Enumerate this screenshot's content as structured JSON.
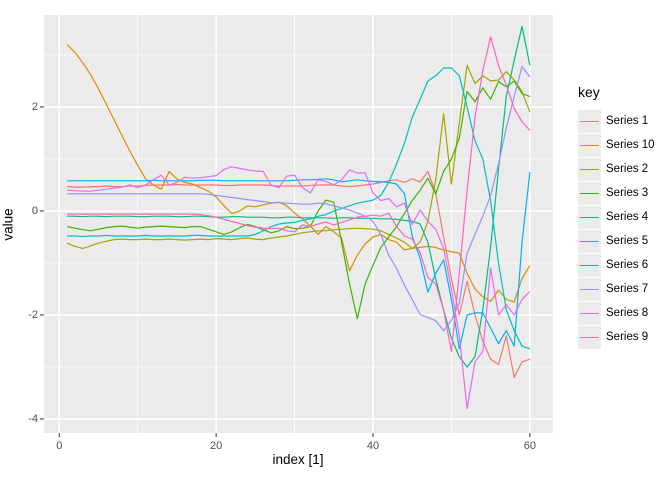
{
  "chart_data": {
    "type": "line",
    "title": "",
    "xlabel": "index [1]",
    "ylabel": "value",
    "legend_title": "key",
    "legend_position": "right",
    "panel_bg": "#EBEBEB",
    "grid_color": "#FFFFFF",
    "tick_color": "#333333",
    "tick_label_color": "#4D4D4D",
    "xlim": [
      -1.95,
      62.95
    ],
    "ylim": [
      -4.27,
      3.77
    ],
    "x_ticks": [
      0,
      20,
      40,
      60
    ],
    "y_ticks": [
      2,
      0,
      -2,
      -4
    ],
    "x_minor_ticks": [
      10,
      30,
      50
    ],
    "y_minor_ticks": [
      3,
      1,
      -1,
      -3
    ],
    "x": [
      1,
      2,
      3,
      4,
      5,
      6,
      7,
      8,
      9,
      10,
      11,
      12,
      13,
      14,
      15,
      16,
      17,
      18,
      19,
      20,
      21,
      22,
      23,
      24,
      25,
      26,
      27,
      28,
      29,
      30,
      31,
      32,
      33,
      34,
      35,
      36,
      37,
      38,
      39,
      40,
      41,
      42,
      43,
      44,
      45,
      46,
      47,
      48,
      49,
      50,
      51,
      52,
      53,
      54,
      55,
      56,
      57,
      58,
      59,
      60
    ],
    "series": [
      {
        "name": "Series 1",
        "color": "#F8766D",
        "values": [
          0.47,
          0.46,
          0.46,
          0.47,
          0.47,
          0.48,
          0.47,
          0.47,
          0.48,
          0.48,
          0.49,
          0.5,
          0.5,
          0.5,
          0.51,
          0.5,
          0.5,
          0.5,
          0.5,
          0.5,
          0.49,
          0.49,
          0.5,
          0.5,
          0.5,
          0.5,
          0.49,
          0.48,
          0.48,
          0.48,
          0.48,
          0.49,
          0.5,
          0.5,
          0.5,
          0.48,
          0.47,
          0.48,
          0.5,
          0.52,
          0.55,
          0.58,
          0.6,
          0.55,
          0.62,
          0.56,
          0.76,
          0.35,
          -0.5,
          -1.3,
          -2.0,
          -1.35,
          -2.0,
          -2.5,
          -2.85,
          -2.95,
          -2.4,
          -3.2,
          -2.9,
          -2.85
        ]
      },
      {
        "name": "Series 10",
        "color": "#D89000",
        "values": [
          3.2,
          3.05,
          2.85,
          2.62,
          2.35,
          2.05,
          1.75,
          1.45,
          1.15,
          0.88,
          0.62,
          0.5,
          0.42,
          0.76,
          0.62,
          0.55,
          0.52,
          0.45,
          0.38,
          0.27,
          0.1,
          -0.05,
          0.0,
          0.1,
          0.08,
          0.12,
          0.15,
          0.17,
          0.1,
          -0.04,
          -0.15,
          -0.29,
          -0.45,
          -0.3,
          -0.4,
          -0.52,
          -1.15,
          -0.85,
          -0.63,
          -0.5,
          -0.45,
          -0.55,
          -0.6,
          -0.75,
          -0.72,
          -0.7,
          -0.68,
          -0.7,
          -0.75,
          -0.78,
          -0.81,
          -1.2,
          -1.5,
          -1.65,
          -1.74,
          -1.52,
          -1.7,
          -1.75,
          -1.3,
          -1.05
        ]
      },
      {
        "name": "Series 2",
        "color": "#A3A500",
        "values": [
          -0.62,
          -0.68,
          -0.72,
          -0.67,
          -0.62,
          -0.58,
          -0.55,
          -0.54,
          -0.55,
          -0.55,
          -0.54,
          -0.55,
          -0.55,
          -0.54,
          -0.55,
          -0.56,
          -0.55,
          -0.54,
          -0.55,
          -0.53,
          -0.54,
          -0.55,
          -0.53,
          -0.52,
          -0.54,
          -0.55,
          -0.52,
          -0.5,
          -0.48,
          -0.45,
          -0.42,
          -0.4,
          -0.38,
          -0.38,
          -0.36,
          -0.35,
          -0.34,
          -0.33,
          -0.34,
          -0.35,
          -0.38,
          -0.45,
          -0.52,
          -0.6,
          -0.72,
          -0.6,
          -0.2,
          0.6,
          1.87,
          0.52,
          1.7,
          2.8,
          2.45,
          2.6,
          2.5,
          2.52,
          2.68,
          2.52,
          2.3,
          1.9
        ]
      },
      {
        "name": "Series 3",
        "color": "#39B600",
        "values": [
          -0.3,
          -0.33,
          -0.36,
          -0.38,
          -0.35,
          -0.32,
          -0.3,
          -0.29,
          -0.31,
          -0.33,
          -0.31,
          -0.3,
          -0.29,
          -0.3,
          -0.31,
          -0.32,
          -0.3,
          -0.3,
          -0.35,
          -0.4,
          -0.45,
          -0.4,
          -0.32,
          -0.26,
          -0.3,
          -0.36,
          -0.42,
          -0.38,
          -0.3,
          -0.34,
          -0.33,
          -0.3,
          0.0,
          0.21,
          0.17,
          -0.6,
          -1.4,
          -2.07,
          -1.4,
          -1.04,
          -0.7,
          -0.5,
          -0.3,
          -0.05,
          0.2,
          0.4,
          0.63,
          0.33,
          0.76,
          1.0,
          1.4,
          2.3,
          2.1,
          2.37,
          2.15,
          2.49,
          2.39,
          2.5,
          2.26,
          2.2
        ]
      },
      {
        "name": "Series 4",
        "color": "#00BF7D",
        "values": [
          -0.1,
          -0.1,
          -0.11,
          -0.1,
          -0.1,
          -0.11,
          -0.1,
          -0.1,
          -0.1,
          -0.11,
          -0.11,
          -0.1,
          -0.1,
          -0.1,
          -0.11,
          -0.11,
          -0.1,
          -0.1,
          -0.11,
          -0.12,
          -0.12,
          -0.11,
          -0.11,
          -0.12,
          -0.12,
          -0.12,
          -0.13,
          -0.13,
          -0.12,
          -0.12,
          -0.13,
          -0.13,
          -0.13,
          -0.13,
          -0.14,
          -0.13,
          -0.13,
          -0.14,
          -0.14,
          -0.14,
          -0.15,
          -0.15,
          -0.16,
          -0.18,
          -0.2,
          -0.25,
          -0.6,
          -1.3,
          -1.9,
          -2.45,
          -2.8,
          -3.0,
          -2.8,
          -1.9,
          -0.7,
          0.8,
          2.2,
          2.9,
          3.55,
          2.8
        ]
      },
      {
        "name": "Series 5",
        "color": "#00BFC4",
        "values": [
          -0.48,
          -0.48,
          -0.49,
          -0.48,
          -0.48,
          -0.47,
          -0.48,
          -0.48,
          -0.48,
          -0.48,
          -0.47,
          -0.48,
          -0.48,
          -0.48,
          -0.48,
          -0.48,
          -0.47,
          -0.47,
          -0.48,
          -0.48,
          -0.48,
          -0.48,
          -0.48,
          -0.48,
          -0.45,
          -0.38,
          -0.3,
          -0.25,
          -0.23,
          -0.22,
          -0.18,
          -0.15,
          -0.1,
          -0.07,
          0.0,
          0.05,
          0.1,
          0.15,
          0.18,
          0.21,
          0.3,
          0.55,
          0.9,
          1.3,
          1.8,
          2.15,
          2.5,
          2.6,
          2.75,
          2.75,
          2.6,
          2.0,
          1.35,
          1.0,
          0.2,
          -1.0,
          -1.9,
          -2.3,
          -2.6,
          -2.65
        ]
      },
      {
        "name": "Series 6",
        "color": "#00B0F6",
        "values": [
          0.58,
          0.58,
          0.58,
          0.58,
          0.58,
          0.58,
          0.58,
          0.58,
          0.58,
          0.58,
          0.58,
          0.59,
          0.58,
          0.58,
          0.58,
          0.58,
          0.58,
          0.59,
          0.59,
          0.59,
          0.58,
          0.58,
          0.58,
          0.58,
          0.58,
          0.58,
          0.58,
          0.58,
          0.58,
          0.59,
          0.6,
          0.6,
          0.61,
          0.62,
          0.6,
          0.56,
          0.58,
          0.6,
          0.58,
          0.57,
          0.56,
          0.55,
          0.52,
          0.33,
          -0.48,
          -0.91,
          -1.56,
          -1.2,
          -0.94,
          -1.7,
          -2.65,
          -2.0,
          -1.96,
          -1.96,
          -2.25,
          -2.55,
          -2.3,
          -2.6,
          -0.6,
          0.75
        ]
      },
      {
        "name": "Series 7",
        "color": "#9590FF",
        "values": [
          0.33,
          0.33,
          0.33,
          0.33,
          0.33,
          0.33,
          0.33,
          0.33,
          0.33,
          0.33,
          0.33,
          0.33,
          0.33,
          0.33,
          0.33,
          0.33,
          0.33,
          0.33,
          0.32,
          0.3,
          0.28,
          0.26,
          0.24,
          0.22,
          0.2,
          0.18,
          0.16,
          0.16,
          0.15,
          0.14,
          0.13,
          0.13,
          0.15,
          0.14,
          0.1,
          0.06,
          0.02,
          -0.04,
          -0.1,
          -0.2,
          -0.45,
          -0.85,
          -1.1,
          -1.43,
          -1.7,
          -1.99,
          -2.05,
          -2.11,
          -2.3,
          -2.1,
          -1.77,
          -0.81,
          -0.45,
          -0.1,
          0.3,
          0.9,
          1.6,
          2.2,
          2.78,
          2.58
        ]
      },
      {
        "name": "Series 8",
        "color": "#E76BF3",
        "values": [
          0.4,
          0.39,
          0.38,
          0.38,
          0.4,
          0.42,
          0.44,
          0.46,
          0.5,
          0.45,
          0.5,
          0.6,
          0.69,
          0.5,
          0.55,
          0.65,
          0.63,
          0.64,
          0.66,
          0.68,
          0.8,
          0.85,
          0.82,
          0.79,
          0.77,
          0.76,
          0.5,
          0.45,
          0.67,
          0.69,
          0.45,
          0.35,
          0.6,
          0.57,
          0.5,
          0.6,
          0.79,
          0.73,
          0.73,
          0.35,
          0.2,
          0.24,
          0.08,
          0.15,
          -0.26,
          0.02,
          -0.2,
          -0.35,
          -0.72,
          -1.5,
          -2.4,
          -3.8,
          -2.9,
          -2.7,
          -1.1,
          -2.0,
          -1.8,
          -2.0,
          -1.7,
          -1.55
        ]
      },
      {
        "name": "Series 9",
        "color": "#FF62BC",
        "values": [
          -0.06,
          -0.06,
          -0.06,
          -0.06,
          -0.06,
          -0.06,
          -0.06,
          -0.06,
          -0.06,
          -0.06,
          -0.06,
          -0.06,
          -0.06,
          -0.06,
          -0.06,
          -0.06,
          -0.06,
          -0.07,
          -0.09,
          -0.12,
          -0.16,
          -0.2,
          -0.24,
          -0.28,
          -0.31,
          -0.33,
          -0.34,
          -0.33,
          -0.38,
          -0.4,
          -0.27,
          -0.3,
          -0.25,
          -0.21,
          -0.27,
          -0.22,
          -0.17,
          -0.12,
          -0.1,
          -0.08,
          -0.1,
          -0.04,
          -0.3,
          -0.48,
          -0.54,
          -0.8,
          -1.28,
          -1.4,
          -1.9,
          -2.7,
          -1.2,
          0.4,
          1.8,
          2.7,
          3.35,
          2.8,
          2.42,
          1.97,
          1.72,
          1.55
        ]
      }
    ]
  }
}
